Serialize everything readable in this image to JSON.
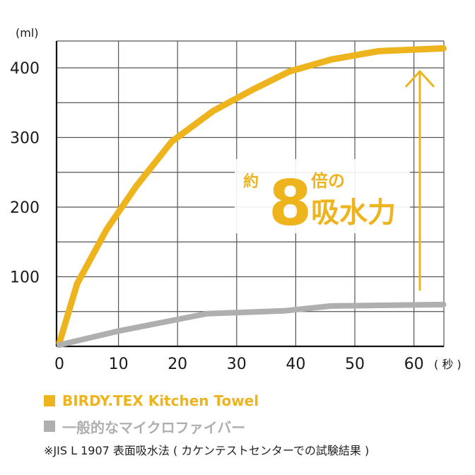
{
  "chart_data": {
    "type": "line",
    "xlabel": "",
    "ylabel": "",
    "y_unit": "(ml)",
    "x_unit": "( 秒 )",
    "xlim": [
      0,
      65
    ],
    "ylim": [
      0,
      440
    ],
    "x_ticks": [
      0,
      10,
      20,
      30,
      40,
      50,
      60
    ],
    "y_ticks": [
      100,
      200,
      300,
      400
    ],
    "grid": true,
    "series": [
      {
        "name": "BIRDY.TEX Kitchen Towel",
        "color": "#EDB41E",
        "x": [
          0,
          3,
          8,
          13,
          19,
          26,
          33,
          39,
          46,
          54,
          65
        ],
        "y": [
          5,
          90,
          168,
          230,
          294,
          338,
          370,
          395,
          412,
          424,
          428
        ]
      },
      {
        "name": "一般的なマイクロファイバー",
        "color": "#AFAFAF",
        "x": [
          0,
          10,
          25,
          38,
          46,
          65
        ],
        "y": [
          2,
          22,
          47,
          51,
          58,
          60
        ]
      }
    ],
    "annotation": {
      "prefix": "約",
      "number": "8",
      "suffix": "倍の",
      "main": "吸水力",
      "arrow_x": 61,
      "arrow_from": 80,
      "arrow_to": 395
    }
  },
  "legend": [
    {
      "label": "BIRDY.TEX Kitchen Towel",
      "color": "#EDB41E"
    },
    {
      "label": "一般的なマイクロファイバー",
      "color": "#AFAFAF"
    }
  ],
  "footnote": "※JIS L 1907 表面吸水法 ( カケンテストセンターでの試験結果 )"
}
